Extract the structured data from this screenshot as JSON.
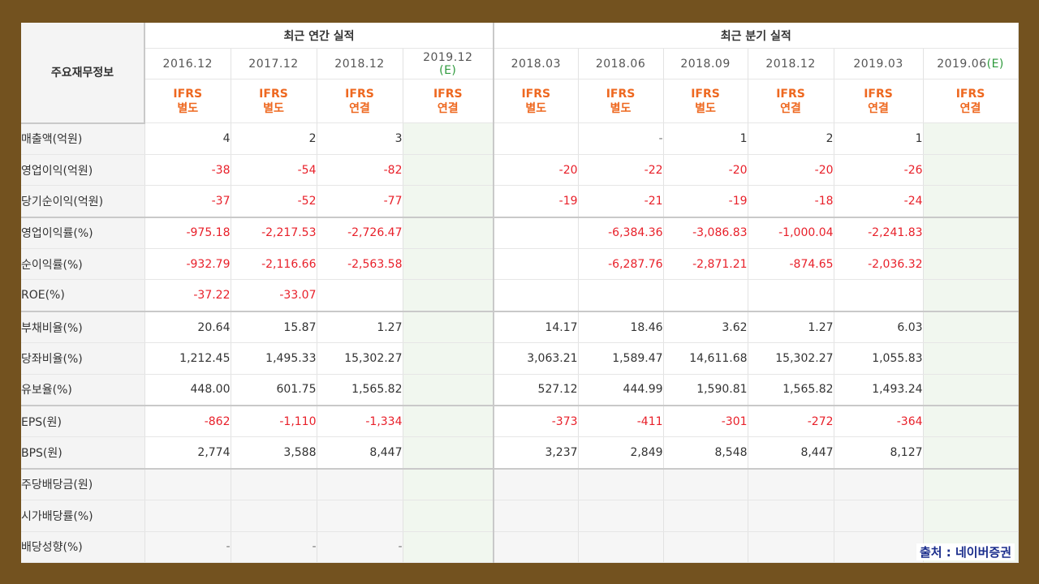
{
  "header": {
    "row_label": "주요재무정보",
    "annual_title": "최근 연간 실적",
    "quarter_title": "최근 분기 실적"
  },
  "columns": [
    {
      "date": "2016.12",
      "ifrs1": "IFRS",
      "ifrs2": "별도",
      "estimate": false
    },
    {
      "date": "2017.12",
      "ifrs1": "IFRS",
      "ifrs2": "별도",
      "estimate": false
    },
    {
      "date": "2018.12",
      "ifrs1": "IFRS",
      "ifrs2": "연결",
      "estimate": false
    },
    {
      "date": "2019.12",
      "date_suffix": "(E)",
      "ifrs1": "IFRS",
      "ifrs2": "연결",
      "estimate": true
    },
    {
      "date": "2018.03",
      "ifrs1": "IFRS",
      "ifrs2": "별도",
      "estimate": false
    },
    {
      "date": "2018.06",
      "ifrs1": "IFRS",
      "ifrs2": "별도",
      "estimate": false
    },
    {
      "date": "2018.09",
      "ifrs1": "IFRS",
      "ifrs2": "별도",
      "estimate": false
    },
    {
      "date": "2018.12",
      "ifrs1": "IFRS",
      "ifrs2": "연결",
      "estimate": false
    },
    {
      "date": "2019.03",
      "ifrs1": "IFRS",
      "ifrs2": "연결",
      "estimate": false
    },
    {
      "date": "2019.06",
      "date_suffix": "(E)",
      "ifrs1": "IFRS",
      "ifrs2": "연결",
      "estimate": true
    }
  ],
  "rows": [
    {
      "label": "매출액(억원)",
      "values": [
        "4",
        "2",
        "3",
        "",
        "",
        "-",
        "1",
        "2",
        "1",
        ""
      ]
    },
    {
      "label": "영업이익(억원)",
      "values": [
        "-38",
        "-54",
        "-82",
        "",
        "-20",
        "-22",
        "-20",
        "-20",
        "-26",
        ""
      ]
    },
    {
      "label": "당기순이익(억원)",
      "values": [
        "-37",
        "-52",
        "-77",
        "",
        "-19",
        "-21",
        "-19",
        "-18",
        "-24",
        ""
      ]
    },
    {
      "label": "영업이익률(%)",
      "values": [
        "-975.18",
        "-2,217.53",
        "-2,726.47",
        "",
        "",
        "-6,384.36",
        "-3,086.83",
        "-1,000.04",
        "-2,241.83",
        ""
      ]
    },
    {
      "label": "순이익률(%)",
      "values": [
        "-932.79",
        "-2,116.66",
        "-2,563.58",
        "",
        "",
        "-6,287.76",
        "-2,871.21",
        "-874.65",
        "-2,036.32",
        ""
      ]
    },
    {
      "label": "ROE(%)",
      "values": [
        "-37.22",
        "-33.07",
        "",
        "",
        "",
        "",
        "",
        "",
        "",
        ""
      ]
    },
    {
      "label": "부채비율(%)",
      "values": [
        "20.64",
        "15.87",
        "1.27",
        "",
        "14.17",
        "18.46",
        "3.62",
        "1.27",
        "6.03",
        ""
      ]
    },
    {
      "label": "당좌비율(%)",
      "values": [
        "1,212.45",
        "1,495.33",
        "15,302.27",
        "",
        "3,063.21",
        "1,589.47",
        "14,611.68",
        "15,302.27",
        "1,055.83",
        ""
      ]
    },
    {
      "label": "유보율(%)",
      "values": [
        "448.00",
        "601.75",
        "1,565.82",
        "",
        "527.12",
        "444.99",
        "1,590.81",
        "1,565.82",
        "1,493.24",
        ""
      ]
    },
    {
      "label": "EPS(원)",
      "values": [
        "-862",
        "-1,110",
        "-1,334",
        "",
        "-373",
        "-411",
        "-301",
        "-272",
        "-364",
        ""
      ]
    },
    {
      "label": "BPS(원)",
      "values": [
        "2,774",
        "3,588",
        "8,447",
        "",
        "3,237",
        "2,849",
        "8,548",
        "8,447",
        "8,127",
        ""
      ]
    },
    {
      "label": "주당배당금(원)",
      "values": [
        "",
        "",
        "",
        "",
        "",
        "",
        "",
        "",
        "",
        ""
      ]
    },
    {
      "label": "시가배당률(%)",
      "values": [
        "",
        "",
        "",
        "",
        "",
        "",
        "",
        "",
        "",
        ""
      ]
    },
    {
      "label": "배당성향(%)",
      "values": [
        "-",
        "-",
        "-",
        "",
        "",
        "",
        "",
        "",
        "",
        ""
      ]
    }
  ],
  "source": "출처 : 네이버증권",
  "colors": {
    "frame": "#73521f",
    "negative": "#e8202a",
    "ifrs": "#ee6820",
    "estimate_bg": "#f1f7ef",
    "estimate_mark": "#2e9a3c",
    "source": "#1a2d8c"
  }
}
